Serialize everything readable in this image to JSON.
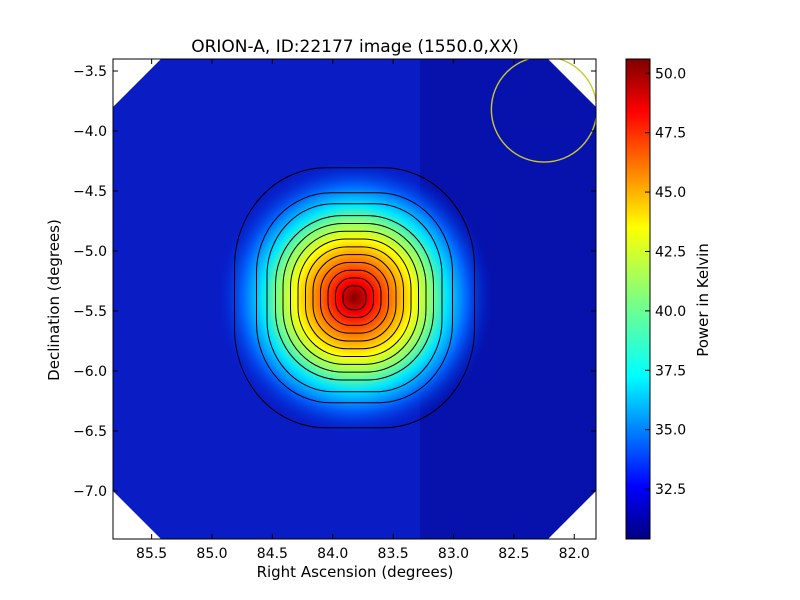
{
  "chart_data": {
    "type": "heatmap",
    "title": "ORION-A, ID:22177 image (1550.0,XX)",
    "xlabel": "Right Ascension (degrees)",
    "ylabel": "Declination (degrees)",
    "xlim": [
      85.82,
      81.82
    ],
    "ylim": [
      -7.4,
      -3.4
    ],
    "x_ticks": [
      85.5,
      85.0,
      84.5,
      84.0,
      83.5,
      83.0,
      82.5,
      82.0
    ],
    "x_tick_labels": [
      "85.5",
      "85.0",
      "84.5",
      "84.0",
      "83.5",
      "83.0",
      "82.5",
      "82.0"
    ],
    "y_ticks": [
      -3.5,
      -4.0,
      -4.5,
      -5.0,
      -5.5,
      -6.0,
      -6.5,
      -7.0
    ],
    "y_tick_labels": [
      "−3.5",
      "−4.0",
      "−4.5",
      "−5.0",
      "−5.5",
      "−6.0",
      "−6.5",
      "−7.0"
    ],
    "colormap": "jet",
    "colorbar": {
      "label": "Power in Kelvin",
      "range": [
        30.4,
        50.6
      ],
      "ticks": [
        32.5,
        35.0,
        37.5,
        40.0,
        42.5,
        45.0,
        47.5,
        50.0
      ],
      "tick_labels": [
        "32.5",
        "35.0",
        "37.5",
        "40.0",
        "42.5",
        "45.0",
        "47.5",
        "50.0"
      ]
    },
    "source": {
      "ra": 83.82,
      "dec": -5.39,
      "peak": 50.6,
      "background": 30.6
    },
    "beam_circle": {
      "ra": 82.25,
      "dec": -3.82,
      "radius_deg": 0.36,
      "color": "#c8c832"
    },
    "contours": {
      "count": 13,
      "color": "#000000"
    }
  }
}
